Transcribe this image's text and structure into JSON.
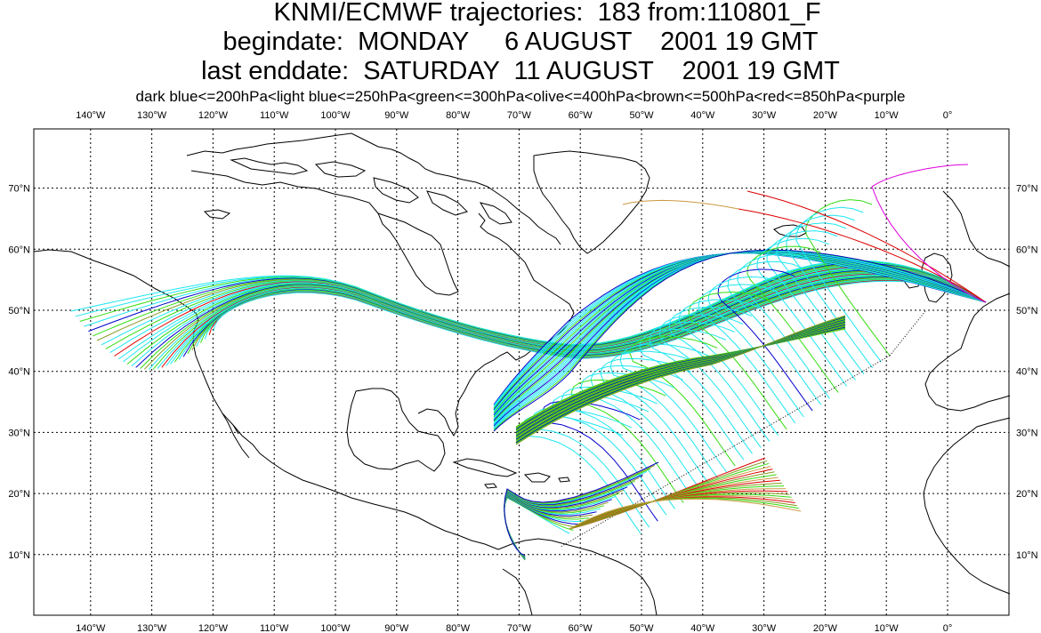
{
  "title": {
    "line1": "KNMI/ECMWF trajectories:  183 from:110801_F",
    "line2": "begindate:  MONDAY     6 AUGUST    2001 19 GMT",
    "line3": "last enddate:  SATURDAY  11 AUGUST    2001 19 GMT",
    "legend": "dark blue<=200hPa<light blue<=250hPa<green<=300hPa<olive<=400hPa<brown<=500hPa<red<=850hPa<purple"
  },
  "axes": {
    "lon_labels": [
      "140°W",
      "130°W",
      "120°W",
      "110°W",
      "100°W",
      "90°W",
      "80°W",
      "70°W",
      "60°W",
      "50°W",
      "40°W",
      "30°W",
      "20°W",
      "10°W",
      "0°"
    ],
    "lat_labels": [
      "70°N",
      "60°N",
      "50°N",
      "40°N",
      "30°N",
      "20°N",
      "10°N"
    ]
  },
  "colors": {
    "dark_blue": "#0000cc",
    "light_blue": "#1ee6f0",
    "green": "#33dd11",
    "olive": "#889922",
    "brown": "#cc9944",
    "red": "#dd0000",
    "purple": "#dd00dd",
    "coast": "#000000"
  }
}
